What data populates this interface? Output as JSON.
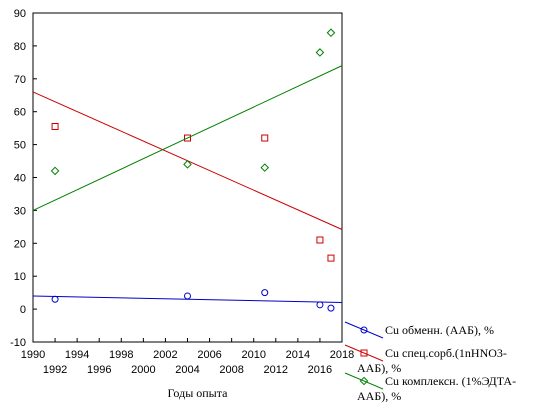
{
  "chart_data": {
    "type": "scatter",
    "title": "",
    "xlabel": "Годы опыта",
    "ylabel": "",
    "xlim": [
      1990,
      2018
    ],
    "ylim": [
      -10,
      90
    ],
    "grid": false,
    "legend_position": "bottom-right",
    "x_ticks_top_row": [
      "1990",
      "1994",
      "1998",
      "2002",
      "2006",
      "2010",
      "2014",
      "2018"
    ],
    "x_ticks_bottom_row": [
      "1992",
      "1996",
      "2000",
      "2004",
      "2008",
      "2012",
      "2016"
    ],
    "y_ticks": [
      "-10",
      "0",
      "10",
      "20",
      "30",
      "40",
      "50",
      "60",
      "70",
      "80",
      "90"
    ],
    "series": [
      {
        "name": "Cu обменн. (ААБ), %",
        "legend_lines": [
          "Cu обменн. (ААБ), %"
        ],
        "marker": "circle",
        "color": "#0000cc",
        "points": [
          [
            1992,
            3
          ],
          [
            2004,
            4
          ],
          [
            2011,
            5
          ],
          [
            2016,
            1.3
          ],
          [
            2017,
            0.3
          ]
        ],
        "trend": [
          [
            1990,
            4
          ],
          [
            2018,
            2
          ]
        ]
      },
      {
        "name": "Cu спец.сорб.(1nHNO3-ААБ), %",
        "legend_lines": [
          "Cu спец.сорб.(1nHNO3-",
          "ААБ), %"
        ],
        "marker": "square",
        "color": "#cc0000",
        "points": [
          [
            1992,
            55.5
          ],
          [
            2004,
            52
          ],
          [
            2011,
            52
          ],
          [
            2016,
            21
          ],
          [
            2017,
            15.5
          ]
        ],
        "trend": [
          [
            1990,
            66
          ],
          [
            2018,
            24.2
          ]
        ]
      },
      {
        "name": "Cu комплексн. (1%ЭДТА-ААБ), %",
        "legend_lines": [
          "Cu комплексн. (1%ЭДТА-",
          "ААБ), %"
        ],
        "marker": "diamond",
        "color": "#008000",
        "points": [
          [
            1992,
            42
          ],
          [
            2004,
            44
          ],
          [
            2011,
            43
          ],
          [
            2016,
            78
          ],
          [
            2017,
            84
          ]
        ],
        "trend": [
          [
            1990,
            30
          ],
          [
            2018,
            74
          ]
        ]
      }
    ]
  }
}
